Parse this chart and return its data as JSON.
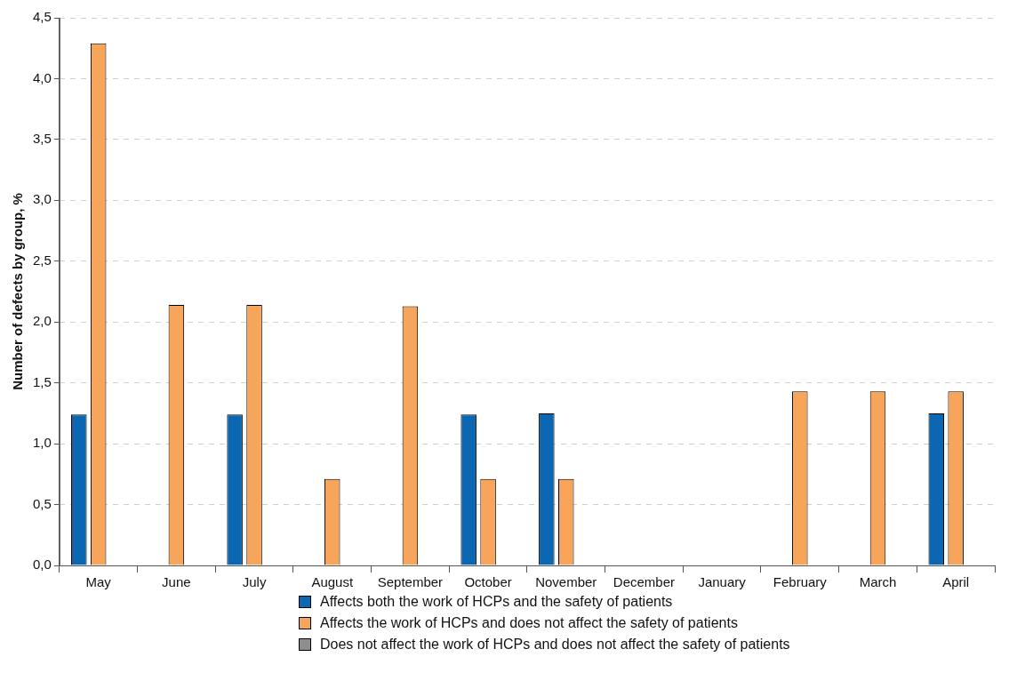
{
  "chart_data": {
    "type": "bar",
    "ylabel": "Number of defects by group, %",
    "categories": [
      "May",
      "June",
      "July",
      "August",
      "September",
      "October",
      "November",
      "December",
      "January",
      "February",
      "March",
      "April"
    ],
    "series": [
      {
        "name": "Affects both the work of HCPs and the safety of patients",
        "color": "#0b67b2",
        "values": [
          1.24,
          0,
          1.24,
          0,
          0,
          1.24,
          1.25,
          0,
          0,
          0,
          0,
          1.25
        ]
      },
      {
        "name": "Affects the work of HCPs and does not affect the safety of patients",
        "color": "#f6a55a",
        "values": [
          4.29,
          2.14,
          2.14,
          0.71,
          2.13,
          0.71,
          0.71,
          0,
          0,
          1.43,
          1.43,
          1.43
        ]
      },
      {
        "name": "Does not affect the work of HCPs and does not affect the safety of patients",
        "color": "#8e8e8e",
        "values": [
          0,
          0,
          0,
          0,
          0,
          0,
          0,
          0,
          0,
          0,
          0,
          0
        ]
      }
    ],
    "ylim": [
      0,
      4.5
    ],
    "yticks": [
      {
        "value": 0,
        "label": "0,0"
      },
      {
        "value": 0.5,
        "label": "0,5"
      },
      {
        "value": 1,
        "label": "1,0"
      },
      {
        "value": 1.5,
        "label": "1,5"
      },
      {
        "value": 2,
        "label": "2,0"
      },
      {
        "value": 2.5,
        "label": "2,5"
      },
      {
        "value": 3,
        "label": "3,0"
      },
      {
        "value": 3.5,
        "label": "3,5"
      },
      {
        "value": 4,
        "label": "4,0"
      },
      {
        "value": 4.5,
        "label": "4,5"
      }
    ],
    "grid": "y",
    "legend": "bottom"
  }
}
